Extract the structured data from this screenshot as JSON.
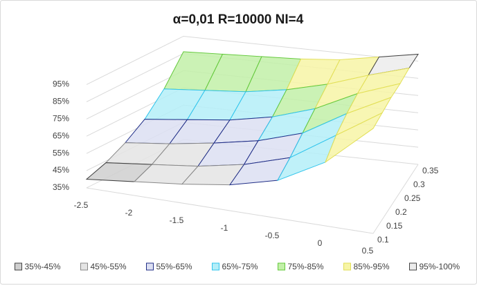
{
  "chart_data": {
    "type": "surface",
    "title": "α=0,01    R=10000    NI=4",
    "x": [
      -2.5,
      -2,
      -1.5,
      -1,
      -0.5,
      0,
      0.5
    ],
    "xlim": [
      -2.5,
      0.5
    ],
    "depth": [
      0.1,
      0.15,
      0.2,
      0.25,
      0.3,
      0.35
    ],
    "depthlim": [
      0.1,
      0.35
    ],
    "z": [
      [
        40,
        43,
        46,
        50,
        57,
        72,
        96
      ],
      [
        44,
        47,
        50,
        55,
        63,
        80,
        97
      ],
      [
        50,
        53,
        57,
        62,
        70,
        85,
        98
      ],
      [
        58,
        61,
        64,
        69,
        77,
        89,
        98
      ],
      [
        70,
        72,
        74,
        78,
        84,
        92,
        99
      ],
      [
        86,
        87,
        88,
        89,
        91,
        95,
        99
      ]
    ],
    "zlim": [
      35,
      100
    ],
    "zticks": [
      {
        "value": 35,
        "label": "35%"
      },
      {
        "value": 45,
        "label": "45%"
      },
      {
        "value": 55,
        "label": "55%"
      },
      {
        "value": 65,
        "label": "65%"
      },
      {
        "value": 75,
        "label": "75%"
      },
      {
        "value": 85,
        "label": "85%"
      },
      {
        "value": 95,
        "label": "95%"
      }
    ],
    "grid": true,
    "legend": "bottom",
    "bands": [
      {
        "name": "35%-45%",
        "min": 35,
        "max": 45,
        "color": "#cfcfcf",
        "border": "#404040"
      },
      {
        "name": "45%-55%",
        "min": 45,
        "max": 55,
        "color": "#e4e4e4",
        "border": "#888888"
      },
      {
        "name": "55%-65%",
        "min": 55,
        "max": 65,
        "color": "#dcdff2",
        "border": "#1f2d86"
      },
      {
        "name": "65%-75%",
        "min": 65,
        "max": 75,
        "color": "#b4eef8",
        "border": "#2fc4ec"
      },
      {
        "name": "75%-85%",
        "min": 75,
        "max": 85,
        "color": "#c2f0a8",
        "border": "#62c83a"
      },
      {
        "name": "85%-95%",
        "min": 85,
        "max": 95,
        "color": "#f7f5a6",
        "border": "#e2df56"
      },
      {
        "name": "95%-100%",
        "min": 95,
        "max": 100,
        "color": "#ececec",
        "border": "#404040"
      }
    ]
  }
}
